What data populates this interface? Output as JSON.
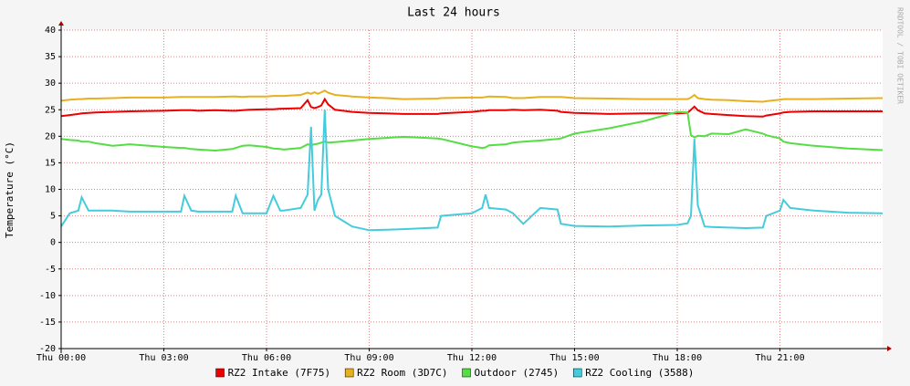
{
  "chart_data": {
    "type": "line",
    "title": "Last 24 hours",
    "y_label": "Temperature (°C)",
    "watermark": "RRDTOOL / TOBI OETIKER",
    "x": [
      0,
      0.25,
      0.5,
      0.6,
      0.8,
      1,
      1.5,
      2,
      3,
      3.5,
      3.6,
      3.8,
      4,
      4.5,
      5,
      5.1,
      5.3,
      5.5,
      6,
      6.2,
      6.4,
      6.5,
      7,
      7.2,
      7.3,
      7.4,
      7.5,
      7.6,
      7.7,
      7.8,
      8,
      8.5,
      9,
      9.5,
      10,
      11,
      11.1,
      12,
      12.3,
      12.4,
      12.5,
      13,
      13.2,
      13.5,
      14,
      14.5,
      14.6,
      15,
      16,
      17,
      18,
      18.3,
      18.4,
      18.5,
      18.6,
      18.8,
      19,
      19.5,
      20,
      20.5,
      20.6,
      21,
      21.1,
      21.3,
      22,
      23,
      24
    ],
    "xlim": [
      0,
      24
    ],
    "xticks": [
      {
        "value": 0,
        "label": "Thu 00:00"
      },
      {
        "value": 3,
        "label": "Thu 03:00"
      },
      {
        "value": 6,
        "label": "Thu 06:00"
      },
      {
        "value": 9,
        "label": "Thu 09:00"
      },
      {
        "value": 12,
        "label": "Thu 12:00"
      },
      {
        "value": 15,
        "label": "Thu 15:00"
      },
      {
        "value": 18,
        "label": "Thu 18:00"
      },
      {
        "value": 21,
        "label": "Thu 21:00"
      }
    ],
    "ylim": [
      -20,
      40
    ],
    "yticks": [
      -20,
      -15,
      -10,
      -5,
      0,
      5,
      10,
      15,
      20,
      25,
      30,
      35,
      40
    ],
    "grid": true,
    "series": [
      {
        "name": "RZ2 Intake (7F75)",
        "color": "#ee0000",
        "values": [
          23.8,
          24,
          24.2,
          24.3,
          24.4,
          24.5,
          24.6,
          24.7,
          24.8,
          24.9,
          24.9,
          24.9,
          24.8,
          24.9,
          24.8,
          24.8,
          24.9,
          25,
          25.1,
          25.1,
          25.2,
          25.2,
          25.3,
          26.8,
          25.5,
          25.3,
          25.5,
          25.8,
          27,
          26,
          25,
          24.6,
          24.4,
          24.3,
          24.2,
          24.2,
          24.3,
          24.6,
          24.8,
          24.8,
          24.9,
          24.9,
          25,
          24.9,
          25,
          24.8,
          24.6,
          24.4,
          24.2,
          24.3,
          24.3,
          24.4,
          25,
          25.6,
          24.9,
          24.3,
          24.2,
          24,
          23.8,
          23.7,
          23.9,
          24.3,
          24.5,
          24.6,
          24.7,
          24.7,
          24.7
        ]
      },
      {
        "name": "RZ2 Room (3D7C)",
        "color": "#e8b020",
        "values": [
          26.7,
          26.9,
          27,
          27,
          27.1,
          27.1,
          27.2,
          27.3,
          27.3,
          27.4,
          27.4,
          27.4,
          27.4,
          27.4,
          27.5,
          27.5,
          27.4,
          27.5,
          27.5,
          27.6,
          27.6,
          27.6,
          27.8,
          28.2,
          28,
          28.3,
          28,
          28.3,
          28.6,
          28.2,
          27.8,
          27.5,
          27.3,
          27.2,
          27,
          27.1,
          27.2,
          27.3,
          27.3,
          27.4,
          27.5,
          27.4,
          27.2,
          27.2,
          27.4,
          27.4,
          27.4,
          27.2,
          27.1,
          27,
          27,
          27,
          27.3,
          27.8,
          27.2,
          27,
          26.9,
          26.8,
          26.6,
          26.5,
          26.6,
          26.9,
          27,
          27,
          27,
          27.1,
          27.2
        ]
      },
      {
        "name": "Outdoor (2745)",
        "color": "#55dd44",
        "values": [
          19.5,
          19.3,
          19.2,
          19,
          19,
          18.7,
          18.2,
          18.5,
          18,
          17.8,
          17.8,
          17.6,
          17.5,
          17.3,
          17.6,
          17.8,
          18.2,
          18.3,
          18,
          17.7,
          17.6,
          17.5,
          17.8,
          18.5,
          18.3,
          18.5,
          18.6,
          18.8,
          19,
          18.8,
          18.9,
          19.2,
          19.5,
          19.7,
          19.9,
          19.6,
          19.5,
          18.1,
          17.8,
          17.9,
          18.3,
          18.5,
          18.8,
          19,
          19.2,
          19.5,
          19.6,
          20.5,
          21.5,
          22.8,
          24.6,
          24.5,
          20.2,
          19.8,
          20.1,
          20,
          20.5,
          20.4,
          21.3,
          20.5,
          20.2,
          19.6,
          19,
          18.7,
          18.2,
          17.7,
          17.4
        ]
      },
      {
        "name": "RZ2 Cooling (3588)",
        "color": "#44ccdd",
        "values": [
          3,
          5.5,
          6,
          8.5,
          6,
          6,
          6,
          5.8,
          5.8,
          5.8,
          8.8,
          6,
          5.8,
          5.8,
          5.8,
          8.8,
          5.5,
          5.5,
          5.5,
          8.8,
          6,
          6,
          6.5,
          9,
          21.8,
          6,
          8,
          9,
          25,
          10,
          5,
          3,
          2.3,
          2.4,
          2.5,
          2.8,
          5,
          5.5,
          6.5,
          9,
          6.5,
          6.2,
          5.5,
          3.5,
          6.5,
          6.2,
          3.5,
          3.1,
          3,
          3.2,
          3.3,
          3.6,
          5,
          19.5,
          7,
          3,
          2.9,
          2.8,
          2.7,
          2.8,
          5,
          6,
          8,
          6.5,
          6,
          5.6,
          5.5
        ]
      }
    ]
  }
}
